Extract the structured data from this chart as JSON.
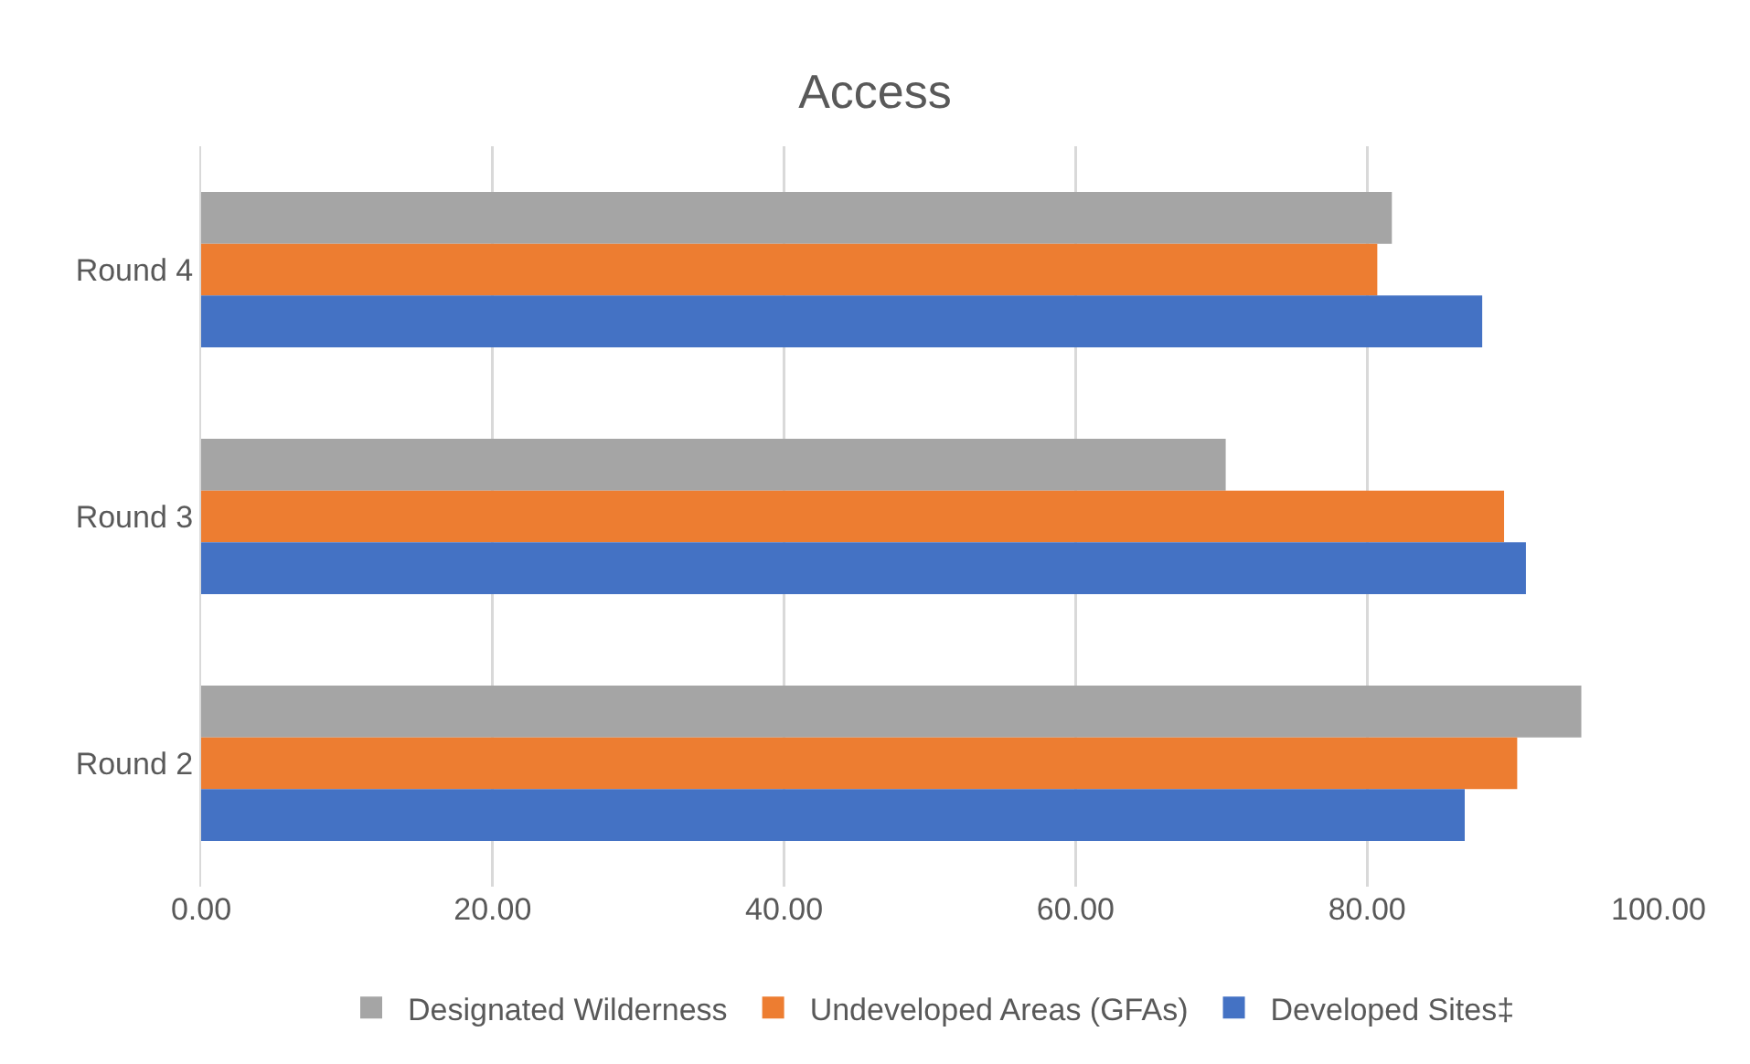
{
  "chart_data": {
    "type": "bar",
    "orientation": "horizontal",
    "title": "Access",
    "categories": [
      "Round 4",
      "Round 3",
      "Round 2"
    ],
    "series": [
      {
        "name": "Designated Wilderness",
        "color": "#a5a5a5",
        "values": [
          81.7,
          70.3,
          94.7
        ]
      },
      {
        "name": "Undeveloped Areas (GFAs)",
        "color": "#ed7d31",
        "values": [
          80.7,
          89.4,
          90.3
        ]
      },
      {
        "name": "Developed Sites‡",
        "color": "#4472c4",
        "values": [
          87.9,
          90.9,
          86.7
        ]
      }
    ],
    "xlim": [
      0,
      100
    ],
    "xticks": [
      {
        "value": 0,
        "label": "0.00"
      },
      {
        "value": 20,
        "label": "20.00"
      },
      {
        "value": 40,
        "label": "40.00"
      },
      {
        "value": 60,
        "label": "60.00"
      },
      {
        "value": 80,
        "label": "80.00"
      },
      {
        "value": 100,
        "label": "100.00"
      }
    ],
    "grid": "x",
    "legend": "bottom"
  }
}
